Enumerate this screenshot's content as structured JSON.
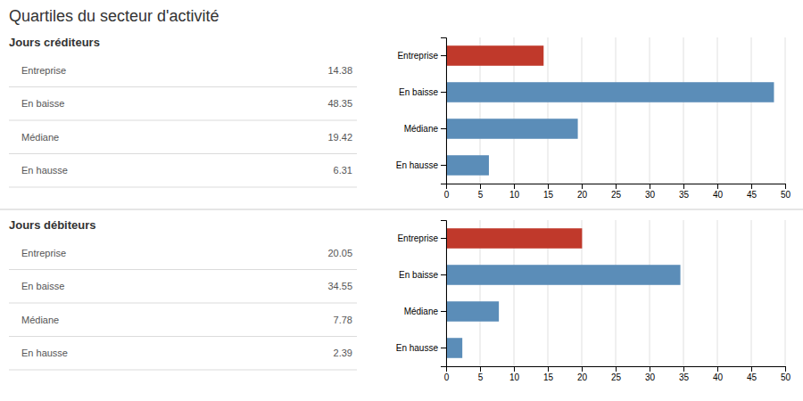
{
  "title": "Quartiles du secteur d'activité",
  "chart_data": [
    {
      "type": "bar",
      "orientation": "horizontal",
      "title": "Jours créditeurs",
      "categories": [
        "Entreprise",
        "En baisse",
        "Médiane",
        "En hausse"
      ],
      "values": [
        14.38,
        48.35,
        19.42,
        6.31
      ],
      "colors": [
        "#c0392b",
        "#5b8db8",
        "#5b8db8",
        "#5b8db8"
      ],
      "xlim": [
        0,
        50
      ],
      "xticks": [
        0,
        5,
        10,
        15,
        20,
        25,
        30,
        35,
        40,
        45,
        50
      ],
      "grid": true,
      "data_labels": true
    },
    {
      "type": "bar",
      "orientation": "horizontal",
      "title": "Jours débiteurs",
      "categories": [
        "Entreprise",
        "En baisse",
        "Médiane",
        "En hausse"
      ],
      "values": [
        20.05,
        34.55,
        7.78,
        2.39
      ],
      "colors": [
        "#c0392b",
        "#5b8db8",
        "#5b8db8",
        "#5b8db8"
      ],
      "xlim": [
        0,
        50
      ],
      "xticks": [
        0,
        5,
        10,
        15,
        20,
        25,
        30,
        35,
        40,
        45,
        50
      ],
      "grid": true,
      "data_labels": true
    }
  ]
}
